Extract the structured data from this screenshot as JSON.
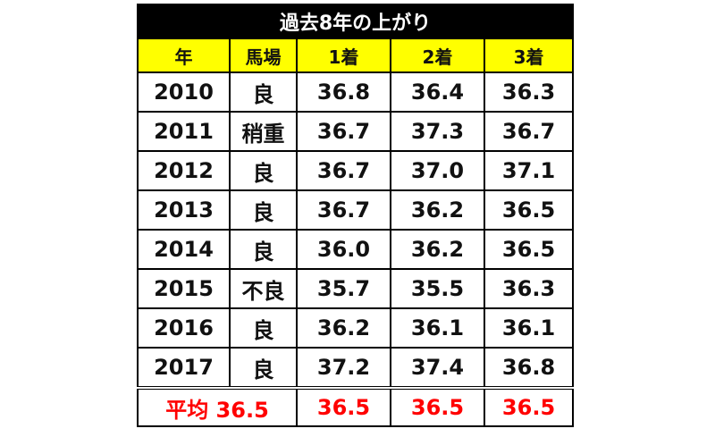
{
  "table": {
    "title": "過去8年の上がり",
    "headers": [
      "年",
      "馬場",
      "1着",
      "2着",
      "3着"
    ],
    "rows": [
      {
        "year": "2010",
        "track": "良",
        "first": "36.8",
        "second": "36.4",
        "third": "36.3"
      },
      {
        "year": "2011",
        "track": "稍重",
        "first": "36.7",
        "second": "37.3",
        "third": "36.7"
      },
      {
        "year": "2012",
        "track": "良",
        "first": "36.7",
        "second": "37.0",
        "third": "37.1"
      },
      {
        "year": "2013",
        "track": "良",
        "first": "36.7",
        "second": "36.2",
        "third": "36.5"
      },
      {
        "year": "2014",
        "track": "良",
        "first": "36.0",
        "second": "36.2",
        "third": "36.5"
      },
      {
        "year": "2015",
        "track": "不良",
        "first": "35.7",
        "second": "35.5",
        "third": "36.3"
      },
      {
        "year": "2016",
        "track": "良",
        "first": "36.2",
        "second": "36.1",
        "third": "36.1"
      },
      {
        "year": "2017",
        "track": "良",
        "first": "37.2",
        "second": "37.4",
        "third": "36.8"
      }
    ],
    "average": {
      "label": "平均 36.5",
      "first": "36.5",
      "second": "36.5",
      "third": "36.5"
    }
  },
  "colors": {
    "title_bg": "#000000",
    "header_bg": "#ffff00",
    "average_text": "#ff0000"
  }
}
